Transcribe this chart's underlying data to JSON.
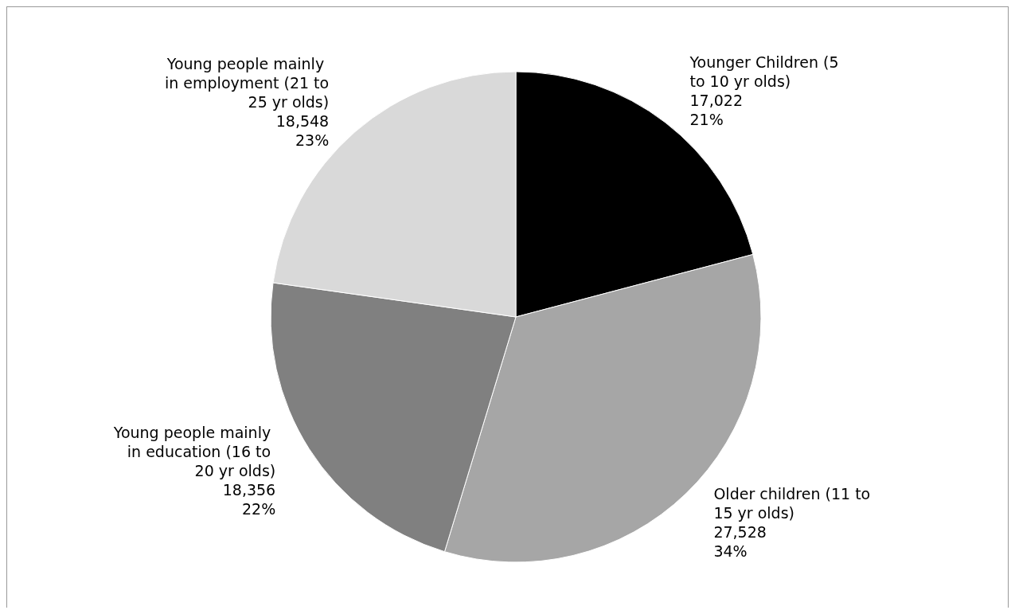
{
  "chart_data": {
    "type": "pie",
    "categories": [
      "Younger Children (5 to 10 yr olds)",
      "Older children (11 to 15 yr olds)",
      "Young people mainly in education (16 to 20 yr olds)",
      "Young people mainly in employment (21 to 25 yr olds)"
    ],
    "values": [
      17022,
      27528,
      18356,
      18548
    ],
    "value_labels": [
      "17,022\n21%",
      "27,528\n34%",
      "18,356\n22%",
      "18,548\n23%"
    ],
    "colors": [
      "#000000",
      "#a6a6a6",
      "#808080",
      "#d9d9d9"
    ],
    "legend": false
  }
}
